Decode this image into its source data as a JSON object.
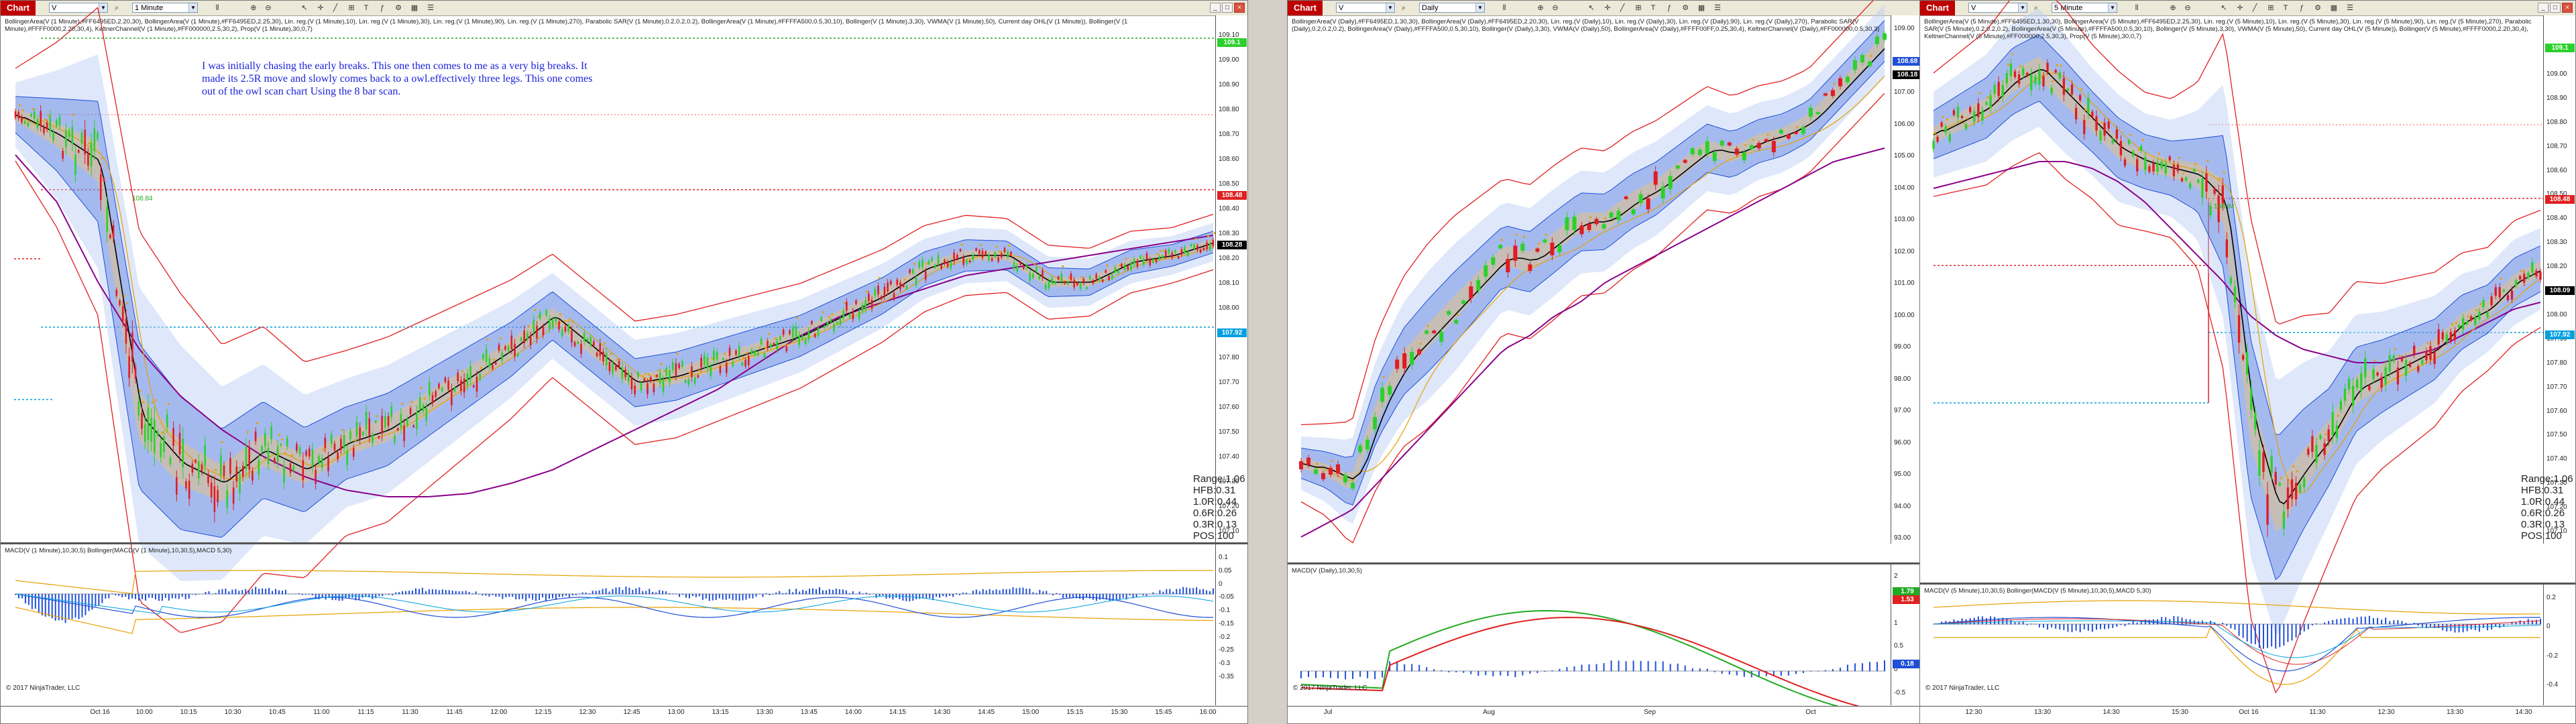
{
  "colors": {
    "up": "#2bd12b",
    "down": "#e01b24",
    "band": "#1f4fd8",
    "bandFill": "#b8cdf4",
    "red": "#e02020",
    "purple": "#8a008a",
    "orange": "#e8a000",
    "green": "#22aa22",
    "cyan": "#00a0e0",
    "blue": "#1a22d8"
  },
  "toolbar": {
    "chart_label": "Chart",
    "icons": [
      "pointer-icon",
      "zoom-in-icon",
      "zoom-out-icon",
      "bar-type-icon",
      "crosshair-icon",
      "draw-line-icon",
      "text-icon",
      "indicators-icon",
      "strategies-icon",
      "data-box-icon",
      "properties-icon",
      "list-icon"
    ]
  },
  "left": {
    "instrument": "V",
    "interval": "1 Minute",
    "indicators": "BollingerArea(V (1 Minute),#FF6495ED,2.20,30), BollingerArea(V (1 Minute),#FF6495ED,2.25,30), Lin. reg.(V (1 Minute),10), Lin. reg.(V (1 Minute),30), Lin. reg.(V (1 Minute),90), Lin. reg.(V (1 Minute),270), Parabolic SAR(V (1 Minute),0.2,0.2,0.2), BollingerArea(V (1 Minute),#FFFFA500,0.5,30,10), Bollinger(V (1 Minute),3,30), VWMA(V (1 Minute),50), Current day OHL(V (1 Minute)), Bollinger(V (1 Minute),#FFFF0000,2.20,30,4), KeltnerChannel(V (1 Minute),#FF000000,2.5,30,2), Prop(V (1 Minute),30,0,7)",
    "annotation": "I was initially chasing the early breaks. This one then comes to me as a very big breaks. It made its 2.5R move and slowly comes back to a owl.effectively three legs. This one comes out of the owl scan chart Using the 8 bar scan.",
    "label_10884": "108.84",
    "y_ticks": [
      "109.10",
      "109.00",
      "108.90",
      "108.80",
      "108.70",
      "108.60",
      "108.50",
      "108.40",
      "108.30",
      "108.20",
      "108.10",
      "108.00",
      "107.90",
      "107.80",
      "107.70",
      "107.60",
      "107.50",
      "107.40",
      "107.30",
      "107.20",
      "107.10"
    ],
    "tags": [
      {
        "text": "109.1",
        "color": "#2bd12b"
      },
      {
        "text": "108.48",
        "color": "#e02020"
      },
      {
        "text": "108.28",
        "color": "#000000"
      },
      {
        "text": "107.92",
        "color": "#00a0e0"
      }
    ],
    "stats": [
      "Range:1.06",
      "HFB:0.31",
      "1.0R:0.44",
      "0.6R:0.26",
      "0.3R:0.13",
      "POS:100"
    ],
    "macd_label": "MACD(V (1 Minute),10,30,5)  Bollinger(MACD(V (1 Minute),10,30,5),MACD 5,30)",
    "macd_ticks": [
      "0.1",
      "0.05",
      "0",
      "-0.05",
      "-0.1",
      "-0.15",
      "-0.2",
      "-0.25",
      "-0.3",
      "-0.35"
    ],
    "x_ticks": [
      "Oct 16",
      "10:00",
      "10:15",
      "10:30",
      "10:45",
      "11:00",
      "11:15",
      "11:30",
      "11:45",
      "12:00",
      "12:15",
      "12:30",
      "12:45",
      "13:00",
      "13:15",
      "13:30",
      "13:45",
      "14:00",
      "14:15",
      "14:30",
      "14:45",
      "15:00",
      "15:15",
      "15:30",
      "15:45",
      "16:00"
    ],
    "copyright": "© 2017 NinjaTrader, LLC"
  },
  "middle": {
    "instrument": "V",
    "interval": "Daily",
    "indicators": "BollingerArea(V (Daily),#FF6495ED,1.30,30), BollingerArea(V (Daily),#FF6495ED,2.20,30), Lin. reg.(V (Daily),10), Lin. reg.(V (Daily),30), Lin. reg.(V (Daily),90), Lin. reg.(V (Daily),270), Parabolic SAR(V (Daily),0.2,0.2,0.2), BollingerArea(V (Daily),#FFFFA500,0.5,30,10), Bollinger(V (Daily),3,30), VWMA(V (Daily),50), BollingerArea(V (Daily),#FFFF00FF,0.25,30,4), KeltnerChannel(V (Daily),#FF000000,0.5,30,3)",
    "y_ticks": [
      "109.00",
      "108.00",
      "107.00",
      "106.00",
      "105.00",
      "104.00",
      "103.00",
      "102.00",
      "101.00",
      "100.00",
      "99.00",
      "98.00",
      "97.00",
      "96.00",
      "95.00",
      "94.00",
      "93.00"
    ],
    "tags": [
      {
        "text": "108.68",
        "color": "#1f4fd8"
      },
      {
        "text": "108.18",
        "color": "#000000"
      }
    ],
    "macd_label": "MACD(V (Daily),10,30,5)",
    "macd_ticks": [
      "2",
      "1.5",
      "1",
      "0.5",
      "0",
      "-0.5"
    ],
    "macd_tags": [
      {
        "text": "1.79",
        "color": "#22aa22"
      },
      {
        "text": "1.53",
        "color": "#e02020"
      },
      {
        "text": "0.18",
        "color": "#1f4fd8"
      }
    ],
    "x_ticks": [
      "Jul",
      "Aug",
      "Sep",
      "Oct"
    ],
    "copyright": "© 2017 NinjaTrader, LLC"
  },
  "right": {
    "instrument": "V",
    "interval": "5 Minute",
    "indicators": "BollingerArea(V (5 Minute),#FF6495ED,1.30,30), BollingerArea(V (5 Minute),#FF6495ED,2.25,30), Lin. reg.(V (5 Minute),10), Lin. reg.(V (5 Minute),30), Lin. reg.(V (5 Minute),90), Lin. reg.(V (5 Minute),270), Parabolic SAR(V (5 Minute),0.2,0.2,0.2), BollingerArea(V (5 Minute),#FFFFA500,0.5,30,10), Bollinger(V (5 Minute),3,30), VWMA(V (5 Minute),50), Current day OHL(V (5 Minute)), Bollinger(V (5 Minute),#FFFF0000,2.20,30,4), KeltnerChannel(V (5 Minute),#FF000000,2.5,30,3), Prop(V (5 Minute),30,0,7)",
    "label_10884": "108.84",
    "y_ticks": [
      "109.10",
      "109.00",
      "108.90",
      "108.80",
      "108.70",
      "108.60",
      "108.50",
      "108.40",
      "108.30",
      "108.20",
      "108.10",
      "108.00",
      "107.90",
      "107.80",
      "107.70",
      "107.60",
      "107.50",
      "107.40",
      "107.30",
      "107.20",
      "107.10"
    ],
    "tags": [
      {
        "text": "109.1",
        "color": "#2bd12b"
      },
      {
        "text": "108.48",
        "color": "#e02020"
      },
      {
        "text": "108.09",
        "color": "#000000"
      },
      {
        "text": "107.92",
        "color": "#00a0e0"
      }
    ],
    "stats": [
      "Range:1.06",
      "HFB:0.31",
      "1.0R:0.44",
      "0.6R:0.26",
      "0.3R:0.13",
      "POS:100"
    ],
    "macd_label": "MACD(V (5 Minute),10,30,5)  Bollinger(MACD(V (5 Minute),10,30,5),MACD 5,30)",
    "macd_ticks": [
      "0.2",
      "0",
      "-0.2",
      "-0.4"
    ],
    "x_ticks": [
      "12:30",
      "13:30",
      "14:30",
      "15:30",
      "Oct 16",
      "11:30",
      "12:30",
      "13:30",
      "14:30"
    ],
    "copyright": "© 2017 NinjaTrader, LLC"
  }
}
